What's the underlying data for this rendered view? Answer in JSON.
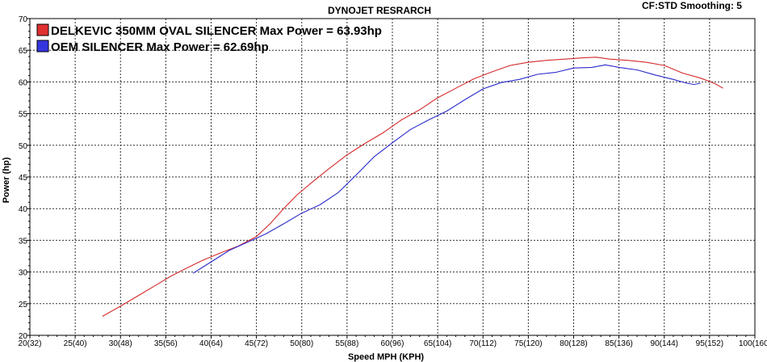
{
  "header": {
    "title": "DYNOJET RESRARCH",
    "settings": "CF:STD Smoothing: 5"
  },
  "chart_data": {
    "type": "line",
    "title": "DYNOJET RESRARCH",
    "xlabel": "Speed MPH (KPH)",
    "ylabel": "Power (hp)",
    "xlim": [
      20,
      100
    ],
    "ylim": [
      20,
      70
    ],
    "grid": true,
    "legend_position": "top-left",
    "x_tick_labels": [
      "20(32)",
      "25(40)",
      "30(48)",
      "35(56)",
      "40(64)",
      "45(72)",
      "50(80)",
      "55(88)",
      "60(96)",
      "65(104)",
      "70(112)",
      "75(120)",
      "80(128)",
      "85(136)",
      "90(144)",
      "95(152)",
      "100(160)"
    ],
    "x_ticks": [
      20,
      25,
      30,
      35,
      40,
      45,
      50,
      55,
      60,
      65,
      70,
      75,
      80,
      85,
      90,
      95,
      100
    ],
    "y_ticks": [
      20,
      25,
      30,
      35,
      40,
      45,
      50,
      55,
      60,
      65,
      70
    ],
    "series": [
      {
        "name": "DELKEVIC 350MM OVAL SILENCER  Max Power = 63.93hp",
        "color": "#d42a2a",
        "swatch_color": "#e03030",
        "x": [
          28.0,
          30.0,
          32.0,
          34.0,
          35.5,
          37.0,
          39.0,
          41.0,
          43.0,
          45.0,
          46.5,
          48.0,
          49.5,
          51.0,
          53.0,
          55.0,
          57.0,
          59.0,
          61.0,
          63.0,
          65.0,
          67.0,
          69.0,
          71.0,
          73.0,
          75.0,
          77.0,
          79.0,
          81.0,
          82.5,
          84.0,
          86.0,
          88.0,
          90.0,
          92.0,
          94.0,
          95.5,
          96.5
        ],
        "y": [
          23.0,
          24.6,
          26.3,
          28.0,
          29.3,
          30.4,
          31.8,
          33.0,
          34.1,
          35.6,
          37.6,
          40.0,
          42.2,
          44.0,
          46.3,
          48.5,
          50.3,
          52.0,
          54.0,
          55.6,
          57.5,
          59.0,
          60.5,
          61.6,
          62.6,
          63.1,
          63.4,
          63.6,
          63.8,
          63.9,
          63.6,
          63.4,
          63.1,
          62.6,
          61.4,
          60.6,
          59.8,
          59.0
        ]
      },
      {
        "name": "OEM SILENCER Max Power = 62.69hp",
        "color": "#2a2acd",
        "swatch_color": "#3535e0",
        "x": [
          38.0,
          40.0,
          42.0,
          44.0,
          46.0,
          48.0,
          50.0,
          52.0,
          54.0,
          56.0,
          58.0,
          60.0,
          62.0,
          64.0,
          66.0,
          68.0,
          70.0,
          72.0,
          74.0,
          76.0,
          78.0,
          80.0,
          82.0,
          83.5,
          85.0,
          87.0,
          89.0,
          91.0,
          92.5,
          93.3,
          94.0
        ],
        "y": [
          29.8,
          31.6,
          33.4,
          34.7,
          36.0,
          37.6,
          39.3,
          40.6,
          42.5,
          45.3,
          48.2,
          50.4,
          52.5,
          54.0,
          55.4,
          57.2,
          58.9,
          59.9,
          60.4,
          61.2,
          61.5,
          62.2,
          62.3,
          62.69,
          62.3,
          61.9,
          61.1,
          60.4,
          59.8,
          59.6,
          59.8
        ]
      }
    ]
  }
}
